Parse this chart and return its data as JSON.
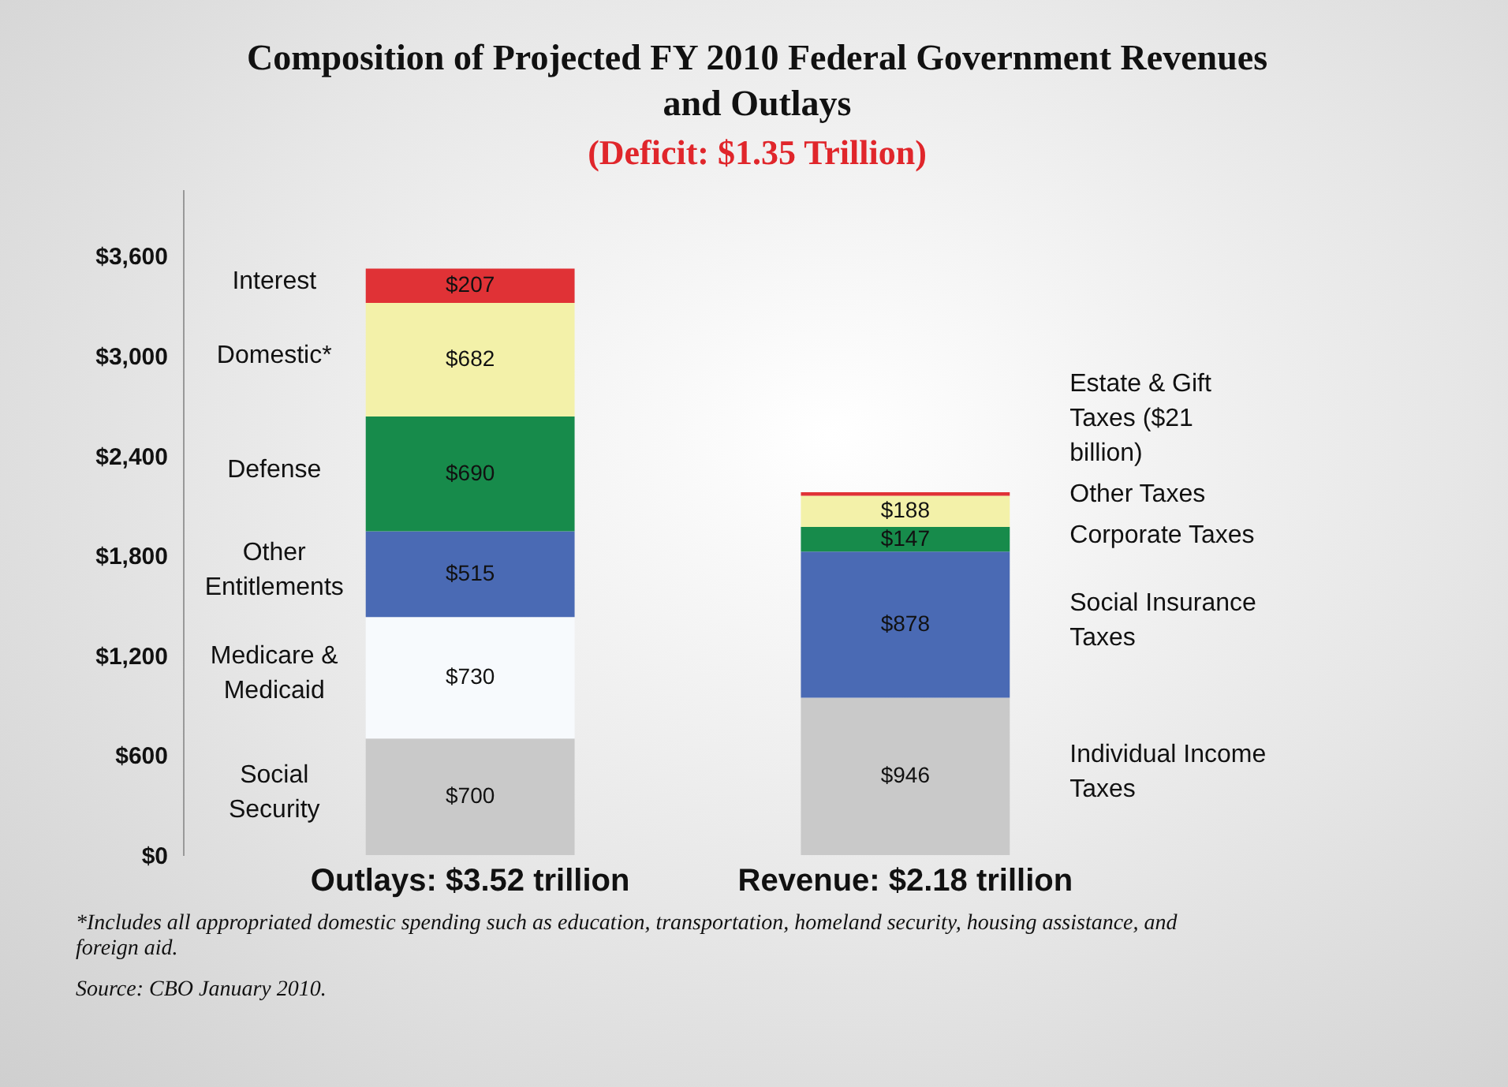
{
  "chart_data": {
    "type": "bar",
    "title": "Composition of Projected FY 2010 Federal Government Revenues and Outlays",
    "subtitle": "(Deficit: $1.35 Trillion)",
    "categories": [
      "Outlays: $3.52 trillion",
      "Revenue: $2.18 trillion"
    ],
    "stacked": true,
    "series": [
      {
        "name": "Social Security",
        "color": "#c9c9c9",
        "values": [
          700,
          null
        ],
        "value_labels": [
          "$700",
          null
        ]
      },
      {
        "name": "Medicare & Medicaid",
        "color": "#f7fafd",
        "values": [
          730,
          null
        ],
        "value_labels": [
          "$730",
          null
        ]
      },
      {
        "name": "Other Entitlements",
        "color": "#4a6ab4",
        "values": [
          515,
          null
        ],
        "value_labels": [
          "$515",
          null
        ]
      },
      {
        "name": "Defense",
        "color": "#178b4b",
        "values": [
          690,
          null
        ],
        "value_labels": [
          "$690",
          null
        ]
      },
      {
        "name": "Domestic*",
        "color": "#f3f1a9",
        "values": [
          682,
          null
        ],
        "value_labels": [
          "$682",
          null
        ]
      },
      {
        "name": "Interest",
        "color": "#e03236",
        "values": [
          207,
          null
        ],
        "value_labels": [
          "$207",
          null
        ]
      },
      {
        "name": "Individual Income Taxes",
        "color": "#c9c9c9",
        "values": [
          null,
          946
        ],
        "value_labels": [
          null,
          "$946"
        ]
      },
      {
        "name": "Social Insurance Taxes",
        "color": "#4a6ab4",
        "values": [
          null,
          878
        ],
        "value_labels": [
          null,
          "$878"
        ]
      },
      {
        "name": "Corporate Taxes",
        "color": "#178b4b",
        "values": [
          null,
          147
        ],
        "value_labels": [
          null,
          "$147"
        ]
      },
      {
        "name": "Other Taxes",
        "color": "#f3f1a9",
        "values": [
          null,
          188
        ],
        "value_labels": [
          null,
          "$188"
        ]
      },
      {
        "name": "Estate & Gift Taxes ($21 billion)",
        "color": "#e03236",
        "values": [
          null,
          21
        ],
        "value_labels": [
          null,
          null
        ]
      }
    ],
    "ylim": [
      0,
      4000
    ],
    "yticks": [
      {
        "value": 0,
        "label": "$0"
      },
      {
        "value": 600,
        "label": "$600"
      },
      {
        "value": 1200,
        "label": "$1,200"
      },
      {
        "value": 1800,
        "label": "$1,800"
      },
      {
        "value": 2400,
        "label": "$2,400"
      },
      {
        "value": 3000,
        "label": "$3,000"
      },
      {
        "value": 3600,
        "label": "$3,600"
      }
    ],
    "grid": false,
    "annotations": [
      "*Includes all appropriated domestic spending such as education, transportation, homeland security, housing assistance, and foreign aid.",
      "Source: CBO January 2010."
    ]
  }
}
